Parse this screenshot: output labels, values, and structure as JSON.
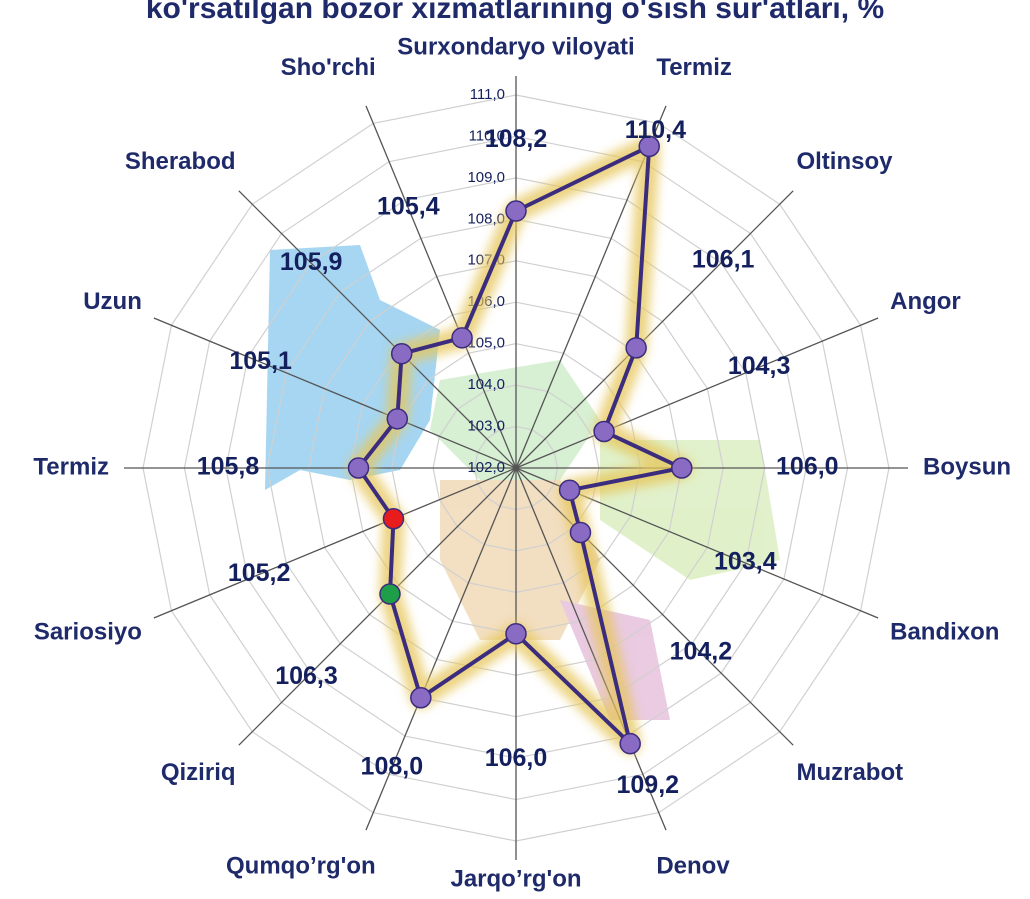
{
  "chart_data": {
    "type": "radar",
    "title": "ko'rsatilgan bozor xizmatlarining o'sish sur'atlari, %",
    "categories": [
      "Surxondaryo viloyati",
      "Termiz",
      "Oltinsoy",
      "Angor",
      "Boysun",
      "Bandixon",
      "Muzrabot",
      "Denov",
      "Jarqo’rg'on",
      "Qumqo’rg'on",
      "Qiziriq",
      "Sariosiyo",
      "Termiz",
      "Uzun",
      "Sherabod",
      "Sho'rchi"
    ],
    "values": [
      108.2,
      110.4,
      106.1,
      104.3,
      106.0,
      103.4,
      104.2,
      109.2,
      106.0,
      108.0,
      106.3,
      105.2,
      105.8,
      105.1,
      105.9,
      105.4
    ],
    "value_labels": [
      "108,2",
      "110,4",
      "106,1",
      "104,3",
      "106,0",
      "103,4",
      "104,2",
      "109,2",
      "106,0",
      "108,0",
      "106,3",
      "105,2",
      "105,8",
      "105,1",
      "105,9",
      "105,4"
    ],
    "color": "#3b2c7e",
    "marker_colors": [
      "#8a6bc4",
      "#8a6bc4",
      "#8a6bc4",
      "#8a6bc4",
      "#8a6bc4",
      "#8a6bc4",
      "#8a6bc4",
      "#8a6bc4",
      "#8a6bc4",
      "#8a6bc4",
      "#1f9e4a",
      "#e81c1c",
      "#8a6bc4",
      "#8a6bc4",
      "#8a6bc4",
      "#8a6bc4"
    ],
    "ylim": [
      102,
      111
    ],
    "yticks": [
      {
        "value": 102,
        "label": "102,0"
      },
      {
        "value": 103,
        "label": "103,0"
      },
      {
        "value": 104,
        "label": "104,0"
      },
      {
        "value": 105,
        "label": "105,0"
      },
      {
        "value": 106,
        "label": "106,0"
      },
      {
        "value": 107,
        "label": "107,0"
      },
      {
        "value": 108,
        "label": "108,0"
      },
      {
        "value": 109,
        "label": "109,0"
      },
      {
        "value": 110,
        "label": "110,0"
      },
      {
        "value": 111,
        "label": "111,0"
      }
    ],
    "grid": true
  }
}
